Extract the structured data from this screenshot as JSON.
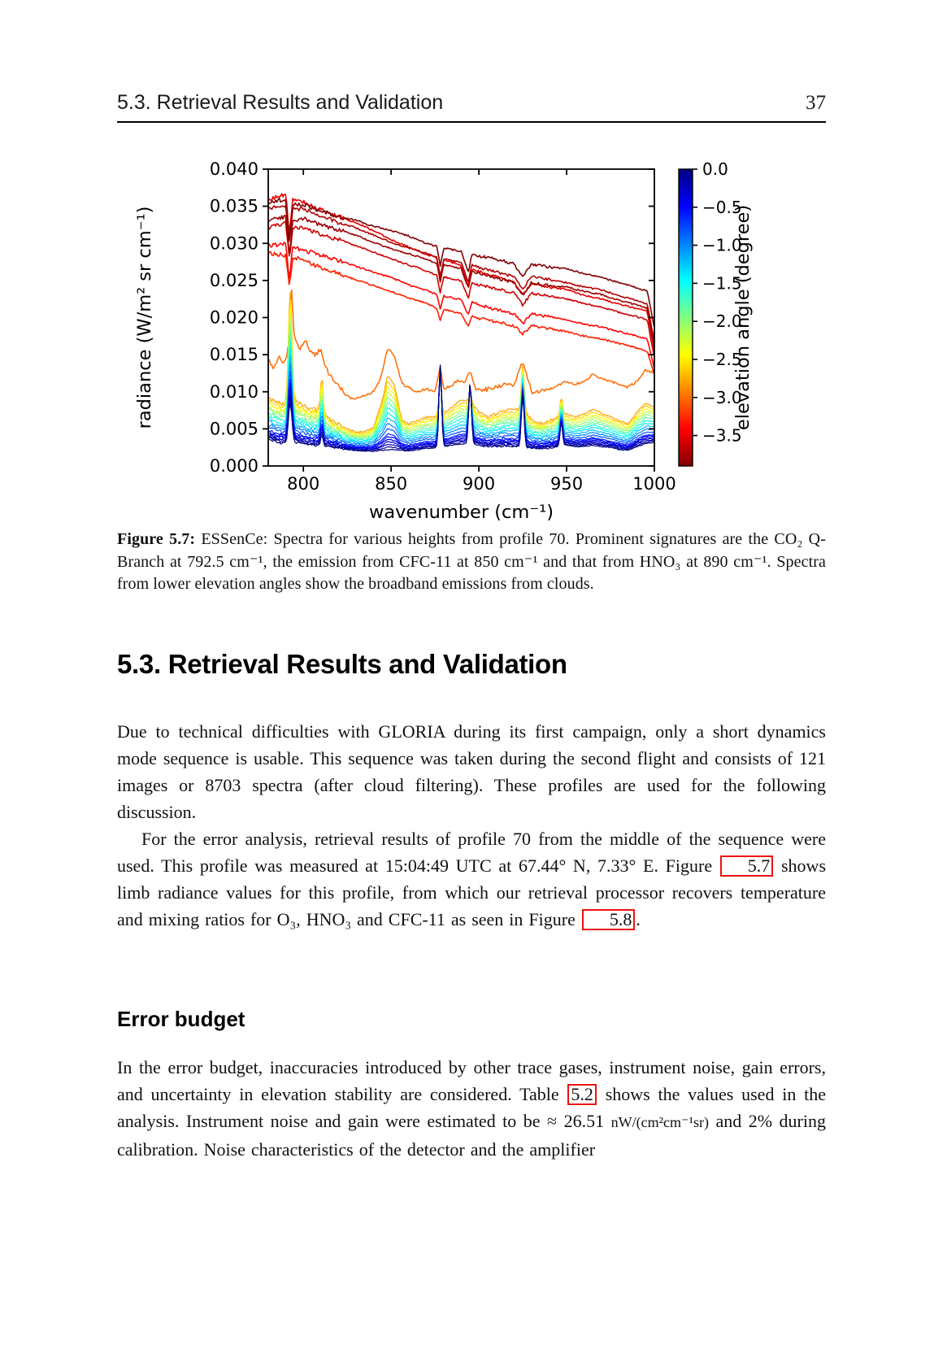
{
  "header": {
    "title": "5.3. Retrieval Results and Validation",
    "page_number": "37"
  },
  "chart_data": {
    "type": "line",
    "title": "",
    "xlabel": "wavenumber (cm⁻¹)",
    "ylabel": "radiance (W/m² sr cm⁻¹)",
    "xlim": [
      780,
      1000
    ],
    "ylim": [
      0,
      0.04
    ],
    "xticks": [
      800,
      850,
      900,
      950,
      1000
    ],
    "yticks": [
      0.0,
      0.005,
      0.01,
      0.015,
      0.02,
      0.025,
      0.03,
      0.035,
      0.04
    ],
    "grid": false,
    "colorbar": {
      "label": "elevation angle (degree)",
      "ticks": [
        0.0,
        -0.5,
        -1.0,
        -1.5,
        -2.0,
        -2.5,
        -3.0,
        -3.5
      ],
      "vmax": 0,
      "vmin": -3.9,
      "stops": [
        "#000080",
        "#0000ff",
        "#0080ff",
        "#00ffff",
        "#80ff80",
        "#ffff00",
        "#ff8000",
        "#ff0000",
        "#800000"
      ]
    },
    "upper_xs": [
      780,
      790,
      792,
      794,
      800,
      810,
      820,
      830,
      840,
      850,
      860,
      870,
      876,
      878,
      880,
      890,
      894,
      896,
      900,
      910,
      920,
      925,
      930,
      940,
      950,
      960,
      970,
      980,
      990,
      996,
      1000
    ],
    "upper_series": [
      {
        "elevation": -3.3,
        "y": [
          0.0287,
          0.0284,
          0.024,
          0.0281,
          0.0277,
          0.0267,
          0.0259,
          0.0251,
          0.0243,
          0.0235,
          0.0227,
          0.0219,
          0.0213,
          0.0196,
          0.0211,
          0.0205,
          0.0188,
          0.0203,
          0.0199,
          0.0194,
          0.0189,
          0.0178,
          0.0189,
          0.0185,
          0.0181,
          0.0175,
          0.0171,
          0.0165,
          0.0159,
          0.0154,
          0.0122
        ]
      },
      {
        "elevation": -3.4,
        "y": [
          0.0296,
          0.03,
          0.0253,
          0.0294,
          0.0291,
          0.0284,
          0.0277,
          0.0269,
          0.0261,
          0.0254,
          0.0244,
          0.0237,
          0.0231,
          0.0212,
          0.0229,
          0.0224,
          0.0204,
          0.0221,
          0.0217,
          0.0211,
          0.0205,
          0.0192,
          0.0205,
          0.0201,
          0.0197,
          0.0191,
          0.0187,
          0.0181,
          0.0175,
          0.0171,
          0.013
        ]
      },
      {
        "elevation": -3.5,
        "y": [
          0.036,
          0.0366,
          0.0312,
          0.0358,
          0.0356,
          0.0345,
          0.0336,
          0.0328,
          0.0317,
          0.0305,
          0.0295,
          0.0285,
          0.028,
          0.0252,
          0.0278,
          0.027,
          0.0243,
          0.0265,
          0.0262,
          0.0255,
          0.0248,
          0.023,
          0.0246,
          0.0241,
          0.0238,
          0.023,
          0.0225,
          0.0218,
          0.0212,
          0.0208,
          0.0152
        ]
      },
      {
        "elevation": -3.6,
        "y": [
          0.0321,
          0.0327,
          0.0278,
          0.0321,
          0.0321,
          0.0312,
          0.0305,
          0.0297,
          0.0288,
          0.0279,
          0.0271,
          0.0263,
          0.0257,
          0.0234,
          0.0255,
          0.0249,
          0.0226,
          0.0247,
          0.0244,
          0.0239,
          0.0233,
          0.0217,
          0.0233,
          0.0229,
          0.0225,
          0.0219,
          0.0214,
          0.0207,
          0.0201,
          0.0197,
          0.0145
        ]
      },
      {
        "elevation": -3.7,
        "y": [
          0.0346,
          0.0352,
          0.03,
          0.0347,
          0.0346,
          0.0337,
          0.0328,
          0.0321,
          0.0311,
          0.0301,
          0.0294,
          0.0287,
          0.0281,
          0.0256,
          0.0279,
          0.0274,
          0.0248,
          0.0271,
          0.0267,
          0.0261,
          0.0255,
          0.0239,
          0.0255,
          0.0251,
          0.0247,
          0.0241,
          0.0237,
          0.0229,
          0.0223,
          0.0218,
          0.0168
        ]
      },
      {
        "elevation": -3.8,
        "y": [
          0.033,
          0.0336,
          0.0285,
          0.0331,
          0.0334,
          0.0325,
          0.0318,
          0.0311,
          0.0301,
          0.0293,
          0.0286,
          0.0279,
          0.0273,
          0.0248,
          0.0271,
          0.0266,
          0.024,
          0.0263,
          0.0259,
          0.0253,
          0.0247,
          0.023,
          0.0247,
          0.0243,
          0.0241,
          0.0235,
          0.0231,
          0.0223,
          0.0217,
          0.0213,
          0.016
        ]
      },
      {
        "elevation": -3.9,
        "y": [
          0.0355,
          0.036,
          0.0305,
          0.0352,
          0.0352,
          0.0344,
          0.0336,
          0.0331,
          0.0323,
          0.0317,
          0.031,
          0.03,
          0.0296,
          0.027,
          0.0294,
          0.0289,
          0.026,
          0.0286,
          0.0283,
          0.0279,
          0.0272,
          0.0254,
          0.0272,
          0.0268,
          0.0266,
          0.0259,
          0.0254,
          0.0247,
          0.024,
          0.0236,
          0.0185
        ]
      }
    ],
    "mid_series": {
      "elevation": -3.0,
      "x": [
        780,
        783,
        786,
        789,
        792,
        793,
        795,
        798,
        801,
        804,
        807,
        810,
        813,
        816,
        820,
        824,
        828,
        832,
        836,
        840,
        844,
        848,
        852,
        856,
        860,
        865,
        870,
        875,
        878,
        880,
        884,
        888,
        892,
        895,
        898,
        902,
        906,
        910,
        915,
        920,
        925,
        930,
        935,
        940,
        945,
        950,
        955,
        960,
        965,
        970,
        975,
        980,
        985,
        990,
        995,
        1000
      ],
      "y": [
        0.0145,
        0.0128,
        0.0152,
        0.0138,
        0.0165,
        0.0245,
        0.0172,
        0.016,
        0.0172,
        0.0155,
        0.0148,
        0.0158,
        0.0132,
        0.012,
        0.0108,
        0.0096,
        0.009,
        0.0092,
        0.0096,
        0.01,
        0.0118,
        0.0158,
        0.0148,
        0.0112,
        0.0105,
        0.01,
        0.0104,
        0.01,
        0.0135,
        0.0104,
        0.0108,
        0.0115,
        0.0112,
        0.0128,
        0.0105,
        0.0102,
        0.0104,
        0.0106,
        0.011,
        0.011,
        0.014,
        0.01,
        0.01,
        0.0104,
        0.0108,
        0.0114,
        0.011,
        0.0114,
        0.0124,
        0.0118,
        0.0114,
        0.011,
        0.0106,
        0.0114,
        0.013,
        0.0125
      ]
    },
    "bundle": {
      "top_elevation": -2.8,
      "bottom_elevation": 0,
      "elevations": [
        -2.8,
        -2.6,
        -2.4,
        -2.2,
        -2.0,
        -1.8,
        -1.6,
        -1.4,
        -1.2,
        -1.0,
        -0.8,
        -0.6,
        -0.5,
        -0.4,
        -0.3,
        -0.2,
        -0.1,
        0.0
      ],
      "xs": [
        780,
        785,
        790,
        795,
        800,
        805,
        810,
        815,
        820,
        825,
        830,
        835,
        840,
        845,
        848,
        852,
        856,
        860,
        865,
        870,
        875,
        880,
        885,
        890,
        895,
        900,
        905,
        910,
        915,
        920,
        925,
        930,
        935,
        940,
        945,
        950,
        955,
        960,
        965,
        970,
        975,
        980,
        985,
        990,
        995,
        1000
      ],
      "top": [
        0.0092,
        0.0086,
        0.0083,
        0.0088,
        0.0081,
        0.0076,
        0.0079,
        0.0063,
        0.0056,
        0.005,
        0.0046,
        0.0046,
        0.0052,
        0.0088,
        0.0122,
        0.0108,
        0.0063,
        0.0057,
        0.0061,
        0.0066,
        0.0066,
        0.0071,
        0.008,
        0.0089,
        0.0087,
        0.0072,
        0.0066,
        0.007,
        0.0075,
        0.0076,
        0.0077,
        0.0062,
        0.0057,
        0.0061,
        0.0066,
        0.007,
        0.0066,
        0.007,
        0.0076,
        0.0071,
        0.0066,
        0.0061,
        0.0057,
        0.0072,
        0.0085,
        0.008
      ],
      "bottom": [
        0.0036,
        0.0032,
        0.003,
        0.0032,
        0.003,
        0.0028,
        0.0028,
        0.0026,
        0.0024,
        0.0022,
        0.0021,
        0.002,
        0.002,
        0.0021,
        0.0022,
        0.0022,
        0.0021,
        0.002,
        0.0022,
        0.0024,
        0.0024,
        0.0026,
        0.0028,
        0.003,
        0.003,
        0.0028,
        0.0026,
        0.0026,
        0.0027,
        0.0026,
        0.0026,
        0.0024,
        0.0023,
        0.0024,
        0.0026,
        0.0028,
        0.0026,
        0.0026,
        0.0028,
        0.0026,
        0.0025,
        0.0022,
        0.0021,
        0.0026,
        0.003,
        0.0032
      ],
      "features": [
        {
          "x": 792.5,
          "w": 1.4,
          "peak_low": 0.0235,
          "peak_high": 0.0085
        },
        {
          "x": 810.5,
          "w": 0.9,
          "peak_low": 0.012,
          "peak_high": 0.0042
        },
        {
          "x": 878.0,
          "w": 1.1,
          "peak_low": 0.0115,
          "peak_high": 0.0136
        },
        {
          "x": 895.0,
          "w": 1.1,
          "peak_low": 0.0095,
          "peak_high": 0.0112
        },
        {
          "x": 925.0,
          "w": 1.1,
          "peak_low": 0.0135,
          "peak_high": 0.0095
        },
        {
          "x": 947.0,
          "w": 1.0,
          "peak_low": 0.0092,
          "peak_high": 0.0058
        }
      ],
      "annotated_features_note": "CO2 Q-Branch 792.5, CFC-11 850, HNO3 890"
    }
  },
  "figure": {
    "caption_segments": [
      {
        "t": "Figure 5.7:",
        "b": true
      },
      {
        "t": " ESSenCe: Spectra for various heights from profile 70. Prominent signatures are the CO₂ Q-Branch at 792.5 cm⁻¹, the emission from CFC-11 at 850 cm⁻¹ and that from HNO₃ at 890 cm⁻¹. Spectra from lower elevation angles show the broadband emissions from clouds."
      }
    ]
  },
  "content": {
    "section_title": "5.3. Retrieval Results and Validation",
    "paragraph1_segments": [
      {
        "t": "Due to technical difficulties with GLORIA during its first campaign, only a short dynamics mode sequence is usable.  This sequence was taken during the second flight and consists of 121 images or 8703 spectra (after cloud filtering). These profiles are used for the following discussion."
      }
    ],
    "paragraph2_segments": [
      {
        "t": "For the error analysis, retrieval results of profile 70 from the middle of the sequence were used. This profile was measured at 15:04:49 UTC at 67.44° N, 7.33° E. Figure "
      },
      {
        "t": "5.7",
        "ref": true
      },
      {
        "t": " shows limb radiance values for this profile, from which our retrieval processor recovers temperature and mixing ratios for O₃, HNO₃ and CFC-11 as seen in Figure "
      },
      {
        "t": "5.8",
        "ref": true
      },
      {
        "t": "."
      }
    ],
    "subsection_title": "Error budget",
    "paragraph3_segments": [
      {
        "t": "In the error budget, inaccuracies introduced by other trace gases, instrument noise, gain errors, and uncertainty in elevation stability are considered. Table "
      },
      {
        "t": "5.2",
        "ref": true
      },
      {
        "t": " shows the values used in the analysis. Instrument noise and gain were estimated to be ≈ 26.51 "
      },
      {
        "t": "nW/(cm²cm⁻¹sr)",
        "small": true
      },
      {
        "t": " and 2% during calibration. Noise characteristics of the detector and the amplifier"
      }
    ]
  }
}
